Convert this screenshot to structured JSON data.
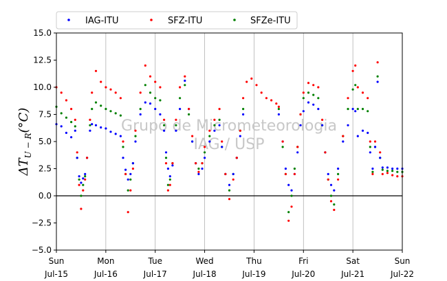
{
  "chart_data": {
    "type": "scatter",
    "ylabel": "ΔT_{U−R}(°C)",
    "ylabel_main": "ΔT",
    "ylabel_sub": "U − R",
    "ylabel_unit": "(°C)",
    "ylim": [
      -5.0,
      15.0
    ],
    "yticks": [
      "−5.0",
      "−2.5",
      "0.0",
      "2.5",
      "5.0",
      "7.5",
      "10.0",
      "12.5",
      "15.0"
    ],
    "ytick_values": [
      -5.0,
      -2.5,
      0.0,
      2.5,
      5.0,
      7.5,
      10.0,
      12.5,
      15.0
    ],
    "xlim": [
      0,
      7
    ],
    "xticks": [
      {
        "day": "Sun",
        "date": "Jul-15"
      },
      {
        "day": "Mon",
        "date": "Jul-16"
      },
      {
        "day": "Tue",
        "date": "Jul-17"
      },
      {
        "day": "Wed",
        "date": "Jul-18"
      },
      {
        "day": "Thu",
        "date": "Jul-19"
      },
      {
        "day": "Fri",
        "date": "Jul-20"
      },
      {
        "day": "Sat",
        "date": "Jul-21"
      },
      {
        "day": "Sun",
        "date": "Jul-22"
      }
    ],
    "grid": "vertical",
    "zero_line": true,
    "legend_position": "top",
    "watermark": [
      "Grupo de Micrometeorologia",
      "IAG / USP"
    ],
    "series": [
      {
        "name": "IAG-ITU",
        "color": "#0000ff",
        "points": [
          [
            0.0,
            6.6
          ],
          [
            0.1,
            6.4
          ],
          [
            0.2,
            5.8
          ],
          [
            0.3,
            5.4
          ],
          [
            0.38,
            6.0
          ],
          [
            0.42,
            3.5
          ],
          [
            0.46,
            1.8
          ],
          [
            0.5,
            1.2
          ],
          [
            0.54,
            1.6
          ],
          [
            0.58,
            2.0
          ],
          [
            0.62,
            3.5
          ],
          [
            0.68,
            6.0
          ],
          [
            0.72,
            6.6
          ],
          [
            0.8,
            6.5
          ],
          [
            0.9,
            6.3
          ],
          [
            1.0,
            6.2
          ],
          [
            1.1,
            5.9
          ],
          [
            1.2,
            5.7
          ],
          [
            1.3,
            5.5
          ],
          [
            1.35,
            3.5
          ],
          [
            1.4,
            2.4
          ],
          [
            1.45,
            1.5
          ],
          [
            1.5,
            2.0
          ],
          [
            1.55,
            3.0
          ],
          [
            1.6,
            5.0
          ],
          [
            1.7,
            7.5
          ],
          [
            1.8,
            8.6
          ],
          [
            1.9,
            8.5
          ],
          [
            2.0,
            8.0
          ],
          [
            2.1,
            7.5
          ],
          [
            2.18,
            6.0
          ],
          [
            2.22,
            4.0
          ],
          [
            2.26,
            2.5
          ],
          [
            2.3,
            1.8
          ],
          [
            2.35,
            2.8
          ],
          [
            2.42,
            6.0
          ],
          [
            2.5,
            8.0
          ],
          [
            2.6,
            10.6
          ],
          [
            2.68,
            8.0
          ],
          [
            2.75,
            5.0
          ],
          [
            2.82,
            3.0
          ],
          [
            2.88,
            2.0
          ],
          [
            2.95,
            2.5
          ],
          [
            3.0,
            3.5
          ],
          [
            3.1,
            5.0
          ],
          [
            3.2,
            6.0
          ],
          [
            3.3,
            6.5
          ],
          [
            3.35,
            4.5
          ],
          [
            3.42,
            2.0
          ],
          [
            3.5,
            1.0
          ],
          [
            3.58,
            2.0
          ],
          [
            3.65,
            3.5
          ],
          [
            3.72,
            5.5
          ],
          [
            3.78,
            7.5
          ],
          [
            4.5,
            7.5
          ],
          [
            4.58,
            5.0
          ],
          [
            4.64,
            2.5
          ],
          [
            4.7,
            1.0
          ],
          [
            4.76,
            0.5
          ],
          [
            4.82,
            2.0
          ],
          [
            4.88,
            4.0
          ],
          [
            4.94,
            6.5
          ],
          [
            5.0,
            7.8
          ],
          [
            5.1,
            8.6
          ],
          [
            5.2,
            8.4
          ],
          [
            5.3,
            8.0
          ],
          [
            5.38,
            6.5
          ],
          [
            5.44,
            4.0
          ],
          [
            5.5,
            2.0
          ],
          [
            5.56,
            1.0
          ],
          [
            5.62,
            0.5
          ],
          [
            5.7,
            2.5
          ],
          [
            5.8,
            5.0
          ],
          [
            5.9,
            6.5
          ],
          [
            6.0,
            8.0
          ],
          [
            6.05,
            7.8
          ],
          [
            6.1,
            5.5
          ],
          [
            6.2,
            6.0
          ],
          [
            6.3,
            5.8
          ],
          [
            6.35,
            4.0
          ],
          [
            6.4,
            2.5
          ],
          [
            6.45,
            4.5
          ],
          [
            6.5,
            10.5
          ],
          [
            6.55,
            3.5
          ],
          [
            6.6,
            2.6
          ],
          [
            6.7,
            2.6
          ],
          [
            6.8,
            2.5
          ],
          [
            6.9,
            2.5
          ],
          [
            7.0,
            2.5
          ]
        ]
      },
      {
        "name": "SFZ-ITU",
        "color": "#ff0000",
        "points": [
          [
            0.0,
            10.0
          ],
          [
            0.1,
            9.5
          ],
          [
            0.2,
            8.8
          ],
          [
            0.3,
            8.0
          ],
          [
            0.38,
            7.0
          ],
          [
            0.42,
            4.0
          ],
          [
            0.46,
            1.0
          ],
          [
            0.5,
            -1.2
          ],
          [
            0.54,
            0.5
          ],
          [
            0.58,
            1.5
          ],
          [
            0.62,
            3.5
          ],
          [
            0.68,
            7.0
          ],
          [
            0.72,
            9.5
          ],
          [
            0.8,
            11.5
          ],
          [
            0.9,
            10.5
          ],
          [
            1.0,
            10.0
          ],
          [
            1.1,
            9.8
          ],
          [
            1.2,
            9.5
          ],
          [
            1.3,
            9.0
          ],
          [
            1.35,
            5.0
          ],
          [
            1.4,
            2.0
          ],
          [
            1.45,
            -1.5
          ],
          [
            1.5,
            0.5
          ],
          [
            1.55,
            2.5
          ],
          [
            1.6,
            6.0
          ],
          [
            1.7,
            9.5
          ],
          [
            1.8,
            12.0
          ],
          [
            1.9,
            11.0
          ],
          [
            2.0,
            10.5
          ],
          [
            2.1,
            10.0
          ],
          [
            2.18,
            7.0
          ],
          [
            2.22,
            3.0
          ],
          [
            2.26,
            0.5
          ],
          [
            2.3,
            1.0
          ],
          [
            2.35,
            3.0
          ],
          [
            2.42,
            7.0
          ],
          [
            2.5,
            10.0
          ],
          [
            2.6,
            11.0
          ],
          [
            2.68,
            8.0
          ],
          [
            2.75,
            5.5
          ],
          [
            2.82,
            3.0
          ],
          [
            2.88,
            2.2
          ],
          [
            2.95,
            3.0
          ],
          [
            3.0,
            4.5
          ],
          [
            3.1,
            6.0
          ],
          [
            3.2,
            7.0
          ],
          [
            3.3,
            8.0
          ],
          [
            3.35,
            5.0
          ],
          [
            3.42,
            2.0
          ],
          [
            3.5,
            -0.3
          ],
          [
            3.58,
            1.5
          ],
          [
            3.65,
            3.5
          ],
          [
            3.72,
            6.0
          ],
          [
            3.78,
            9.0
          ],
          [
            3.85,
            10.5
          ],
          [
            3.95,
            10.8
          ],
          [
            4.05,
            10.2
          ],
          [
            4.15,
            9.5
          ],
          [
            4.25,
            9.0
          ],
          [
            4.35,
            8.8
          ],
          [
            4.45,
            8.5
          ],
          [
            4.5,
            8.2
          ],
          [
            4.58,
            5.0
          ],
          [
            4.64,
            2.0
          ],
          [
            4.7,
            -2.3
          ],
          [
            4.76,
            -1.0
          ],
          [
            4.82,
            2.0
          ],
          [
            4.88,
            4.5
          ],
          [
            4.94,
            7.5
          ],
          [
            5.0,
            9.5
          ],
          [
            5.1,
            10.4
          ],
          [
            5.2,
            10.2
          ],
          [
            5.3,
            10.0
          ],
          [
            5.38,
            7.0
          ],
          [
            5.44,
            4.0
          ],
          [
            5.5,
            1.5
          ],
          [
            5.56,
            -0.5
          ],
          [
            5.62,
            -1.3
          ],
          [
            5.7,
            1.5
          ],
          [
            5.8,
            5.5
          ],
          [
            5.9,
            9.0
          ],
          [
            6.0,
            11.5
          ],
          [
            6.05,
            12.0
          ],
          [
            6.1,
            10.0
          ],
          [
            6.2,
            9.5
          ],
          [
            6.3,
            9.0
          ],
          [
            6.35,
            5.0
          ],
          [
            6.4,
            2.0
          ],
          [
            6.45,
            5.0
          ],
          [
            6.5,
            12.3
          ],
          [
            6.55,
            4.0
          ],
          [
            6.6,
            2.0
          ],
          [
            6.7,
            2.1
          ],
          [
            6.8,
            1.9
          ],
          [
            6.9,
            1.8
          ],
          [
            7.0,
            1.8
          ]
        ]
      },
      {
        "name": "SFZe-ITU",
        "color": "#008000",
        "points": [
          [
            0.0,
            8.2
          ],
          [
            0.1,
            7.6
          ],
          [
            0.2,
            7.2
          ],
          [
            0.3,
            6.8
          ],
          [
            0.38,
            6.4
          ],
          [
            0.42,
            3.5
          ],
          [
            0.46,
            1.5
          ],
          [
            0.5,
            0.0
          ],
          [
            0.54,
            1.0
          ],
          [
            0.58,
            1.8
          ],
          [
            0.62,
            3.5
          ],
          [
            0.68,
            6.5
          ],
          [
            0.72,
            8.0
          ],
          [
            0.8,
            8.6
          ],
          [
            0.9,
            8.3
          ],
          [
            1.0,
            8.0
          ],
          [
            1.1,
            7.8
          ],
          [
            1.2,
            7.6
          ],
          [
            1.3,
            7.4
          ],
          [
            1.35,
            4.5
          ],
          [
            1.4,
            2.0
          ],
          [
            1.45,
            0.5
          ],
          [
            1.5,
            1.5
          ],
          [
            1.55,
            3.0
          ],
          [
            1.6,
            5.5
          ],
          [
            1.7,
            8.0
          ],
          [
            1.8,
            10.2
          ],
          [
            1.9,
            9.5
          ],
          [
            2.0,
            9.0
          ],
          [
            2.1,
            8.8
          ],
          [
            2.18,
            6.5
          ],
          [
            2.22,
            3.5
          ],
          [
            2.26,
            1.0
          ],
          [
            2.3,
            1.5
          ],
          [
            2.35,
            3.0
          ],
          [
            2.42,
            6.5
          ],
          [
            2.5,
            9.0
          ],
          [
            2.6,
            10.2
          ],
          [
            2.68,
            7.5
          ],
          [
            2.75,
            5.0
          ],
          [
            2.82,
            3.0
          ],
          [
            2.88,
            2.5
          ],
          [
            2.95,
            3.0
          ],
          [
            3.0,
            4.0
          ],
          [
            3.1,
            5.5
          ],
          [
            3.2,
            6.5
          ],
          [
            3.3,
            7.0
          ],
          [
            3.35,
            4.5
          ],
          [
            3.42,
            2.0
          ],
          [
            3.5,
            0.5
          ],
          [
            3.58,
            2.0
          ],
          [
            3.65,
            3.5
          ],
          [
            3.72,
            6.0
          ],
          [
            3.78,
            8.0
          ],
          [
            4.5,
            8.0
          ],
          [
            4.58,
            4.5
          ],
          [
            4.64,
            2.0
          ],
          [
            4.7,
            -1.5
          ],
          [
            4.76,
            0.0
          ],
          [
            4.82,
            2.5
          ],
          [
            4.88,
            4.5
          ],
          [
            4.94,
            7.5
          ],
          [
            5.0,
            9.0
          ],
          [
            5.1,
            9.5
          ],
          [
            5.2,
            9.3
          ],
          [
            5.3,
            9.0
          ],
          [
            5.38,
            6.5
          ],
          [
            5.44,
            4.0
          ],
          [
            5.5,
            1.5
          ],
          [
            5.56,
            0.0
          ],
          [
            5.62,
            -0.8
          ],
          [
            5.7,
            2.0
          ],
          [
            5.8,
            5.5
          ],
          [
            5.9,
            8.0
          ],
          [
            6.0,
            9.8
          ],
          [
            6.05,
            10.2
          ],
          [
            6.1,
            8.0
          ],
          [
            6.2,
            8.0
          ],
          [
            6.3,
            7.8
          ],
          [
            6.35,
            4.5
          ],
          [
            6.4,
            2.2
          ],
          [
            6.45,
            4.5
          ],
          [
            6.5,
            11.0
          ],
          [
            6.55,
            3.5
          ],
          [
            6.6,
            2.4
          ],
          [
            6.7,
            2.3
          ],
          [
            6.8,
            2.3
          ],
          [
            6.9,
            2.2
          ],
          [
            7.0,
            2.2
          ]
        ]
      }
    ]
  }
}
